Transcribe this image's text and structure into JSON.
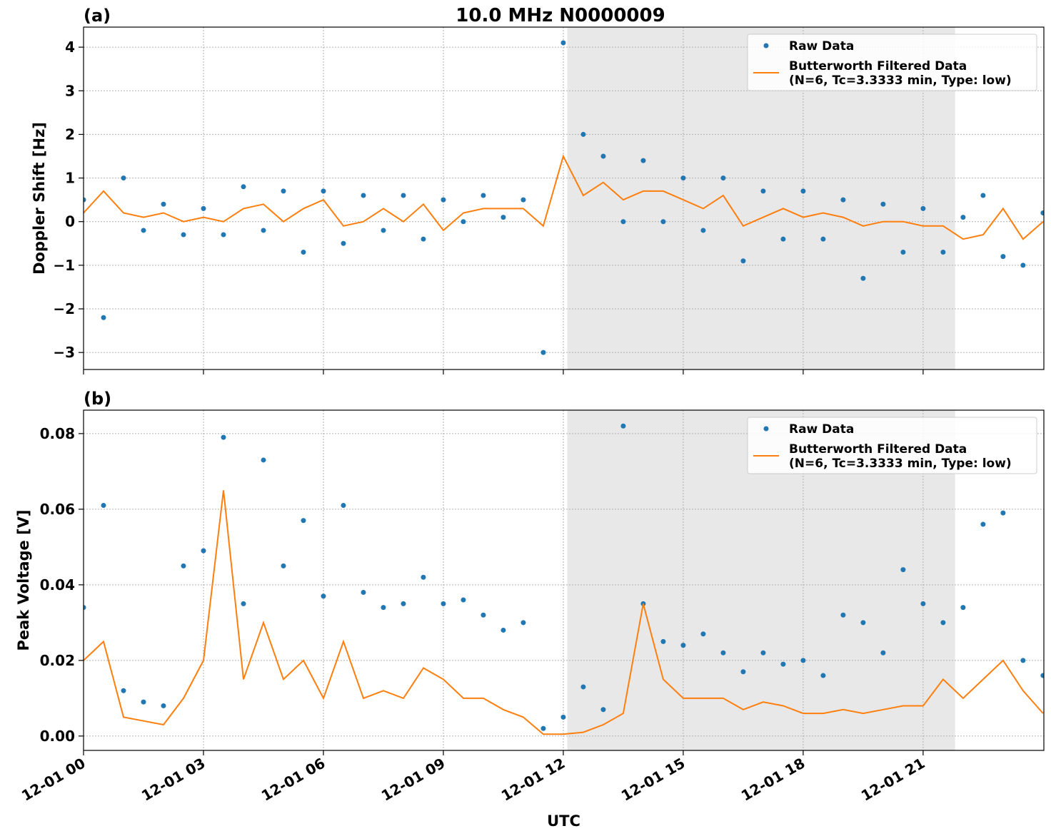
{
  "chart_data": [
    {
      "type": "scatter-line",
      "title": "10.0 MHz N0000009",
      "panel_label": "(a)",
      "ylabel": "Doppler Shift [Hz]",
      "x": [
        0,
        0.5,
        1,
        1.5,
        2,
        2.5,
        3,
        3.5,
        4,
        4.5,
        5,
        5.5,
        6,
        6.5,
        7,
        7.5,
        8,
        8.5,
        9,
        9.5,
        10,
        10.5,
        11,
        11.5,
        12,
        12.5,
        13,
        13.5,
        14,
        14.5,
        15,
        15.5,
        16,
        16.5,
        17,
        17.5,
        18,
        18.5,
        19,
        19.5,
        20,
        20.5,
        21,
        21.5,
        22,
        22.5,
        23,
        23.5,
        24
      ],
      "series": [
        {
          "name": "Raw Data",
          "color": "#1f77b4",
          "style": "points",
          "values": [
            0.5,
            -2.2,
            1.0,
            -0.2,
            0.4,
            -0.3,
            0.3,
            -0.3,
            0.8,
            -0.2,
            0.7,
            -0.7,
            0.7,
            -0.5,
            0.6,
            -0.2,
            0.6,
            -0.4,
            0.5,
            0.0,
            0.6,
            0.1,
            0.5,
            -3.0,
            4.1,
            2.0,
            1.5,
            0.0,
            1.4,
            0.0,
            1.0,
            -0.2,
            1.0,
            -0.9,
            0.7,
            -0.4,
            0.7,
            -0.4,
            0.5,
            -1.3,
            0.4,
            -0.7,
            0.3,
            -0.7,
            0.1,
            0.6,
            -0.8,
            -1.0,
            0.2
          ]
        },
        {
          "name": "Butterworth Filtered Data\n(N=6, Tc=3.3333 min, Type: low)",
          "color": "#ff7f0e",
          "style": "line",
          "values": [
            0.2,
            0.7,
            0.2,
            0.1,
            0.2,
            0.0,
            0.1,
            0.0,
            0.3,
            0.4,
            0.0,
            0.3,
            0.5,
            -0.1,
            0.0,
            0.3,
            0.0,
            0.4,
            -0.2,
            0.2,
            0.3,
            0.3,
            0.3,
            -0.1,
            1.5,
            0.6,
            0.9,
            0.5,
            0.7,
            0.7,
            0.5,
            0.3,
            0.6,
            -0.1,
            0.1,
            0.3,
            0.1,
            0.2,
            0.1,
            -0.1,
            0.0,
            0.0,
            -0.1,
            -0.1,
            -0.4,
            -0.3,
            0.3,
            -0.4,
            0.0
          ]
        }
      ],
      "shaded_span": [
        12.1,
        21.8
      ],
      "shade_color": "#e8e8e8",
      "xlim": [
        0,
        24.02
      ],
      "xticks": [
        0,
        3,
        6,
        9,
        12,
        15,
        18,
        21
      ],
      "ylim": [
        -3.39,
        4.46
      ],
      "yticks": [
        {
          "value": -3,
          "label": "−3"
        },
        {
          "value": -2,
          "label": "−2"
        },
        {
          "value": -1,
          "label": "−1"
        },
        0,
        1,
        2,
        3,
        4
      ],
      "grid": true,
      "legend": "upper right"
    },
    {
      "type": "scatter-line",
      "panel_label": "(b)",
      "ylabel": "Peak Voltage [V]",
      "xlabel": "UTC",
      "x": [
        0,
        0.5,
        1,
        1.5,
        2,
        2.5,
        3,
        3.5,
        4,
        4.5,
        5,
        5.5,
        6,
        6.5,
        7,
        7.5,
        8,
        8.5,
        9,
        9.5,
        10,
        10.5,
        11,
        11.5,
        12,
        12.5,
        13,
        13.5,
        14,
        14.5,
        15,
        15.5,
        16,
        16.5,
        17,
        17.5,
        18,
        18.5,
        19,
        19.5,
        20,
        20.5,
        21,
        21.5,
        22,
        22.5,
        23,
        23.5,
        24
      ],
      "series": [
        {
          "name": "Raw Data",
          "color": "#1f77b4",
          "style": "points",
          "values": [
            0.034,
            0.061,
            0.012,
            0.009,
            0.008,
            0.045,
            0.049,
            0.079,
            0.035,
            0.073,
            0.045,
            0.057,
            0.037,
            0.061,
            0.038,
            0.034,
            0.035,
            0.042,
            0.035,
            0.036,
            0.032,
            0.028,
            0.03,
            0.002,
            0.005,
            0.013,
            0.007,
            0.082,
            0.035,
            0.025,
            0.024,
            0.027,
            0.022,
            0.017,
            0.022,
            0.019,
            0.02,
            0.016,
            0.032,
            0.03,
            0.022,
            0.044,
            0.035,
            0.03,
            0.034,
            0.056,
            0.059,
            0.02,
            0.016
          ]
        },
        {
          "name": "Butterworth Filtered Data\n(N=6, Tc=3.3333 min, Type: low)",
          "color": "#ff7f0e",
          "style": "line",
          "values": [
            0.02,
            0.025,
            0.005,
            0.004,
            0.003,
            0.01,
            0.02,
            0.065,
            0.015,
            0.03,
            0.015,
            0.02,
            0.01,
            0.025,
            0.01,
            0.012,
            0.01,
            0.018,
            0.015,
            0.01,
            0.01,
            0.007,
            0.005,
            0.0005,
            0.0005,
            0.001,
            0.003,
            0.006,
            0.035,
            0.015,
            0.01,
            0.01,
            0.01,
            0.007,
            0.009,
            0.008,
            0.006,
            0.006,
            0.007,
            0.006,
            0.007,
            0.008,
            0.008,
            0.015,
            0.01,
            0.015,
            0.02,
            0.012,
            0.006
          ]
        }
      ],
      "shaded_span": [
        12.1,
        21.8
      ],
      "shade_color": "#e8e8e8",
      "xlim": [
        0,
        24.02
      ],
      "xticks": [
        {
          "value": 0,
          "label": "12-01 00"
        },
        {
          "value": 3,
          "label": "12-01 03"
        },
        {
          "value": 6,
          "label": "12-01 06"
        },
        {
          "value": 9,
          "label": "12-01 09"
        },
        {
          "value": 12,
          "label": "12-01 12"
        },
        {
          "value": 15,
          "label": "12-01 15"
        },
        {
          "value": 18,
          "label": "12-01 18"
        },
        {
          "value": 21,
          "label": "12-01 21"
        }
      ],
      "ylim": [
        -0.0038,
        0.0862
      ],
      "yticks": [
        {
          "value": 0,
          "label": "0.00"
        },
        0.02,
        0.04,
        0.06,
        0.08
      ],
      "grid": true,
      "legend": "upper right"
    }
  ]
}
